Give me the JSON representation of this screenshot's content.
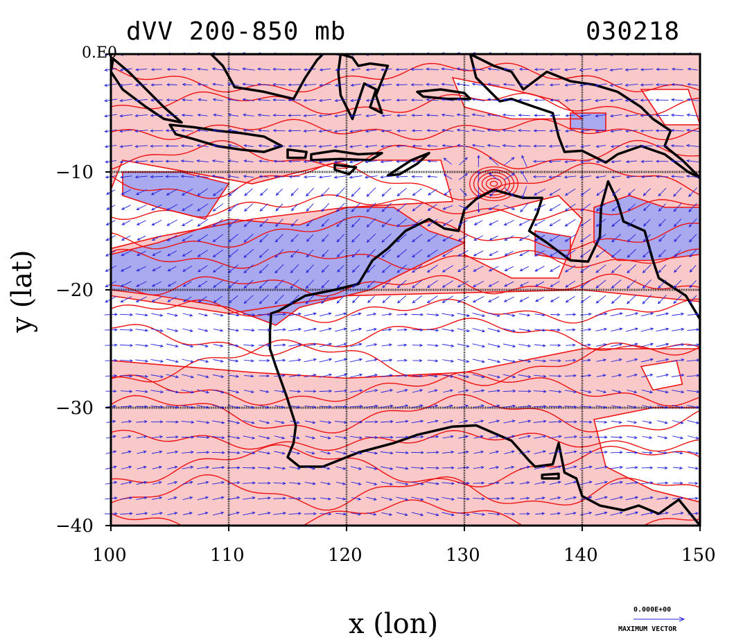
{
  "header": {
    "title": "dVV 200-850 mb",
    "date": "030218"
  },
  "axes": {
    "xlabel": "x (lon)",
    "ylabel": "y (lat)",
    "xticks": [
      "100",
      "110",
      "120",
      "130",
      "140",
      "150"
    ],
    "yticks": [
      "0.E0",
      "−10",
      "−20",
      "−30",
      "−40"
    ],
    "xlim": [
      100,
      150
    ],
    "ylim": [
      -40,
      0
    ]
  },
  "vector_key": {
    "value": "0.000E+00",
    "label": "MAXIMUM VECTOR"
  },
  "colors": {
    "positive_fill": "#f9c8c8",
    "negative_fill": "#a9a9f0",
    "contour": "#ee1111",
    "vectors": "#1f1fdd",
    "coast": "#000000"
  },
  "chart_data": {
    "type": "heatmap",
    "title": "dVV 200-850 mb",
    "xlabel": "x (lon)",
    "ylabel": "y (lat)",
    "xlim": [
      100,
      150
    ],
    "ylim": [
      -40,
      0
    ],
    "grid": true,
    "legend": "none",
    "negative_regions": [
      {
        "lon": [
          [
            101,
            -10
          ],
          [
            106,
            -10
          ],
          [
            110,
            -11
          ],
          [
            108,
            -14
          ],
          [
            104,
            -13
          ],
          [
            101,
            -12
          ]
        ]
      },
      {
        "lon": [
          [
            100,
            -17
          ],
          [
            104,
            -16
          ],
          [
            110,
            -14
          ],
          [
            116,
            -14.5
          ],
          [
            120,
            -13
          ],
          [
            124,
            -13
          ],
          [
            127,
            -15
          ],
          [
            130,
            -16
          ],
          [
            126,
            -18
          ],
          [
            122,
            -20
          ],
          [
            120,
            -20.5
          ],
          [
            116,
            -21.5
          ],
          [
            114,
            -23
          ],
          [
            110,
            -21.5
          ],
          [
            104,
            -20.5
          ],
          [
            100,
            -20
          ]
        ]
      },
      {
        "lon": [
          [
            141,
            -13
          ],
          [
            144,
            -12
          ],
          [
            147,
            -13
          ],
          [
            150,
            -13
          ],
          [
            150,
            -17
          ],
          [
            146,
            -17.5
          ],
          [
            143,
            -17.5
          ],
          [
            141,
            -16
          ]
        ]
      },
      {
        "lon": [
          [
            136,
            -15
          ],
          [
            139,
            -15.5
          ],
          [
            139,
            -17.5
          ],
          [
            136,
            -17
          ]
        ]
      },
      {
        "lon": [
          [
            139,
            -5
          ],
          [
            142,
            -5
          ],
          [
            142,
            -6.5
          ],
          [
            139,
            -6.3
          ]
        ]
      }
    ],
    "white_regions": [
      {
        "lon": [
          [
            101,
            -9
          ],
          [
            112,
            -11
          ],
          [
            120,
            -9
          ],
          [
            128,
            -9
          ],
          [
            129,
            -12.5
          ],
          [
            120,
            -13
          ],
          [
            112,
            -14
          ],
          [
            104,
            -15.5
          ],
          [
            100,
            -16.5
          ],
          [
            100,
            -11.5
          ]
        ]
      },
      {
        "lon": [
          [
            100,
            -20.5
          ],
          [
            110,
            -22
          ],
          [
            120,
            -20.5
          ],
          [
            140,
            -20
          ],
          [
            150,
            -21
          ],
          [
            150,
            -25
          ],
          [
            140,
            -25
          ],
          [
            130,
            -27
          ],
          [
            120,
            -27.5
          ],
          [
            112,
            -27
          ],
          [
            100,
            -26
          ]
        ]
      },
      {
        "lon": [
          [
            141,
            -31
          ],
          [
            146,
            -30
          ],
          [
            150,
            -30
          ],
          [
            150,
            -38
          ],
          [
            146,
            -37
          ],
          [
            142,
            -35
          ]
        ]
      },
      {
        "lon": [
          [
            145,
            -26.5
          ],
          [
            148,
            -26
          ],
          [
            148.5,
            -28
          ],
          [
            146,
            -28.5
          ]
        ]
      },
      {
        "lon": [
          [
            129,
            -2
          ],
          [
            134,
            -3
          ],
          [
            138,
            -4
          ],
          [
            140,
            -5.5
          ],
          [
            134,
            -5.5
          ],
          [
            130,
            -4.5
          ]
        ]
      },
      {
        "lon": [
          [
            145,
            -3
          ],
          [
            149,
            -3
          ],
          [
            150,
            -6
          ],
          [
            147,
            -6
          ]
        ]
      },
      {
        "lon": [
          [
            134,
            -13
          ],
          [
            138,
            -12
          ],
          [
            140,
            -14
          ],
          [
            138,
            -19
          ],
          [
            134,
            -19
          ],
          [
            130,
            -17
          ],
          [
            130,
            -14
          ]
        ]
      }
    ],
    "coastlines": [
      {
        "name": "sumatra",
        "points": [
          [
            100.2,
            -0.4
          ],
          [
            101.5,
            -1.5
          ],
          [
            103,
            -3
          ],
          [
            104.5,
            -4.5
          ],
          [
            106,
            -5.8
          ],
          [
            104.5,
            -5.5
          ],
          [
            103,
            -4.5
          ],
          [
            101,
            -3
          ],
          [
            100,
            -1.5
          ]
        ]
      },
      {
        "name": "java",
        "points": [
          [
            105,
            -6
          ],
          [
            107,
            -6.2
          ],
          [
            109,
            -6.5
          ],
          [
            111,
            -6.7
          ],
          [
            113,
            -7
          ],
          [
            114.5,
            -7.8
          ],
          [
            113,
            -8.3
          ],
          [
            111,
            -8.1
          ],
          [
            109,
            -7.8
          ],
          [
            107,
            -7.2
          ],
          [
            105.5,
            -6.8
          ]
        ]
      },
      {
        "name": "bali-lombok",
        "points": [
          [
            115,
            -8.1
          ],
          [
            116.6,
            -8.3
          ],
          [
            116.5,
            -8.8
          ],
          [
            115,
            -8.8
          ]
        ]
      },
      {
        "name": "sumbawa-flores",
        "points": [
          [
            117,
            -8.5
          ],
          [
            119,
            -8.2
          ],
          [
            121,
            -8.5
          ],
          [
            123,
            -8.4
          ],
          [
            122,
            -9
          ],
          [
            119.5,
            -8.9
          ],
          [
            117,
            -9
          ]
        ]
      },
      {
        "name": "sumba",
        "points": [
          [
            119,
            -9.4
          ],
          [
            120.8,
            -9.6
          ],
          [
            120.2,
            -10.2
          ],
          [
            119,
            -9.8
          ]
        ]
      },
      {
        "name": "timor",
        "points": [
          [
            123.5,
            -10.3
          ],
          [
            125.5,
            -9
          ],
          [
            127,
            -8.4
          ],
          [
            126,
            -9.3
          ],
          [
            124.5,
            -10.2
          ]
        ]
      },
      {
        "name": "borneo",
        "points": [
          [
            108.5,
            0
          ],
          [
            109.5,
            -1
          ],
          [
            110.5,
            -2.8
          ],
          [
            113,
            -3.2
          ],
          [
            115.5,
            -3.8
          ],
          [
            116.5,
            -2
          ],
          [
            117.5,
            -0.5
          ],
          [
            118,
            0
          ]
        ]
      },
      {
        "name": "sulawesi",
        "points": [
          [
            119.5,
            0
          ],
          [
            119.3,
            -1.5
          ],
          [
            119.5,
            -3.5
          ],
          [
            120.5,
            -5.5
          ],
          [
            121,
            -4
          ],
          [
            121.5,
            -2.5
          ],
          [
            122.5,
            -3
          ],
          [
            122,
            -4.5
          ],
          [
            123,
            -5
          ],
          [
            122.5,
            -3.5
          ],
          [
            123.5,
            -1
          ],
          [
            122,
            -0.8
          ],
          [
            121,
            -1
          ],
          [
            120.5,
            -0.3
          ]
        ]
      },
      {
        "name": "new-guinea",
        "points": [
          [
            130.5,
            0
          ],
          [
            131.5,
            -0.5
          ],
          [
            132.5,
            -1
          ],
          [
            134,
            -1.5
          ],
          [
            135,
            -3
          ],
          [
            137,
            -1.5
          ],
          [
            139,
            -2.3
          ],
          [
            141,
            -2.6
          ],
          [
            143,
            -3.2
          ],
          [
            145,
            -4.5
          ],
          [
            146,
            -5.5
          ],
          [
            147.5,
            -6.5
          ],
          [
            147,
            -7.8
          ],
          [
            148.5,
            -9
          ],
          [
            150,
            -10.5
          ],
          [
            149,
            -10
          ],
          [
            147,
            -8.5
          ],
          [
            145,
            -7.8
          ],
          [
            143,
            -8.5
          ],
          [
            142,
            -9.2
          ],
          [
            140,
            -8.2
          ],
          [
            138.5,
            -8.3
          ],
          [
            138,
            -7
          ],
          [
            137.5,
            -5
          ],
          [
            136,
            -4.5
          ],
          [
            134,
            -3.8
          ],
          [
            133,
            -4
          ],
          [
            132,
            -3
          ],
          [
            131,
            -2
          ]
        ]
      },
      {
        "name": "seram-buru",
        "points": [
          [
            126,
            -3.2
          ],
          [
            128,
            -3
          ],
          [
            130,
            -3.3
          ],
          [
            130.5,
            -3.8
          ],
          [
            128.5,
            -3.8
          ],
          [
            126.5,
            -3.6
          ]
        ]
      },
      {
        "name": "australia",
        "points": [
          [
            113.6,
            -22
          ],
          [
            114.2,
            -21.8
          ],
          [
            116.5,
            -20.5
          ],
          [
            119,
            -20
          ],
          [
            121,
            -19.5
          ],
          [
            122.2,
            -17.5
          ],
          [
            123.5,
            -16.5
          ],
          [
            125,
            -15
          ],
          [
            127,
            -14
          ],
          [
            128.3,
            -14.8
          ],
          [
            129.5,
            -15
          ],
          [
            130,
            -13.2
          ],
          [
            131,
            -12.3
          ],
          [
            132.5,
            -11.5
          ],
          [
            133.5,
            -11.8
          ],
          [
            135,
            -12.2
          ],
          [
            136.6,
            -12.2
          ],
          [
            136.2,
            -13.5
          ],
          [
            135.5,
            -15
          ],
          [
            137,
            -16
          ],
          [
            139,
            -17.5
          ],
          [
            140.5,
            -17.6
          ],
          [
            141.5,
            -15.5
          ],
          [
            141.6,
            -13
          ],
          [
            142.2,
            -10.8
          ],
          [
            143,
            -12.5
          ],
          [
            143.5,
            -14.2
          ],
          [
            145.3,
            -15
          ],
          [
            146,
            -17.5
          ],
          [
            146.5,
            -19
          ],
          [
            148.8,
            -20.5
          ],
          [
            150,
            -22.5
          ],
          [
            150,
            -40
          ],
          [
            148.2,
            -37.8
          ],
          [
            146.5,
            -39
          ],
          [
            144.8,
            -38.3
          ],
          [
            143.5,
            -38.7
          ],
          [
            141.5,
            -38.3
          ],
          [
            140,
            -37.5
          ],
          [
            139.5,
            -36
          ],
          [
            138.5,
            -35.5
          ],
          [
            138,
            -33
          ],
          [
            137.5,
            -34.8
          ],
          [
            136,
            -35
          ],
          [
            135.5,
            -34.5
          ],
          [
            134,
            -32.8
          ],
          [
            131,
            -31.5
          ],
          [
            129,
            -31.6
          ],
          [
            126,
            -32.3
          ],
          [
            124,
            -33
          ],
          [
            121,
            -33.8
          ],
          [
            118,
            -35
          ],
          [
            116,
            -35
          ],
          [
            115,
            -34.2
          ],
          [
            115.5,
            -33
          ],
          [
            115.7,
            -31.5
          ],
          [
            114.9,
            -29
          ],
          [
            114,
            -26.5
          ],
          [
            113.5,
            -25
          ],
          [
            113.5,
            -23.5
          ]
        ]
      },
      {
        "name": "kangaroo-island",
        "points": [
          [
            136.6,
            -35.7
          ],
          [
            138,
            -35.6
          ],
          [
            138,
            -36
          ],
          [
            136.6,
            -36
          ]
        ]
      }
    ]
  }
}
